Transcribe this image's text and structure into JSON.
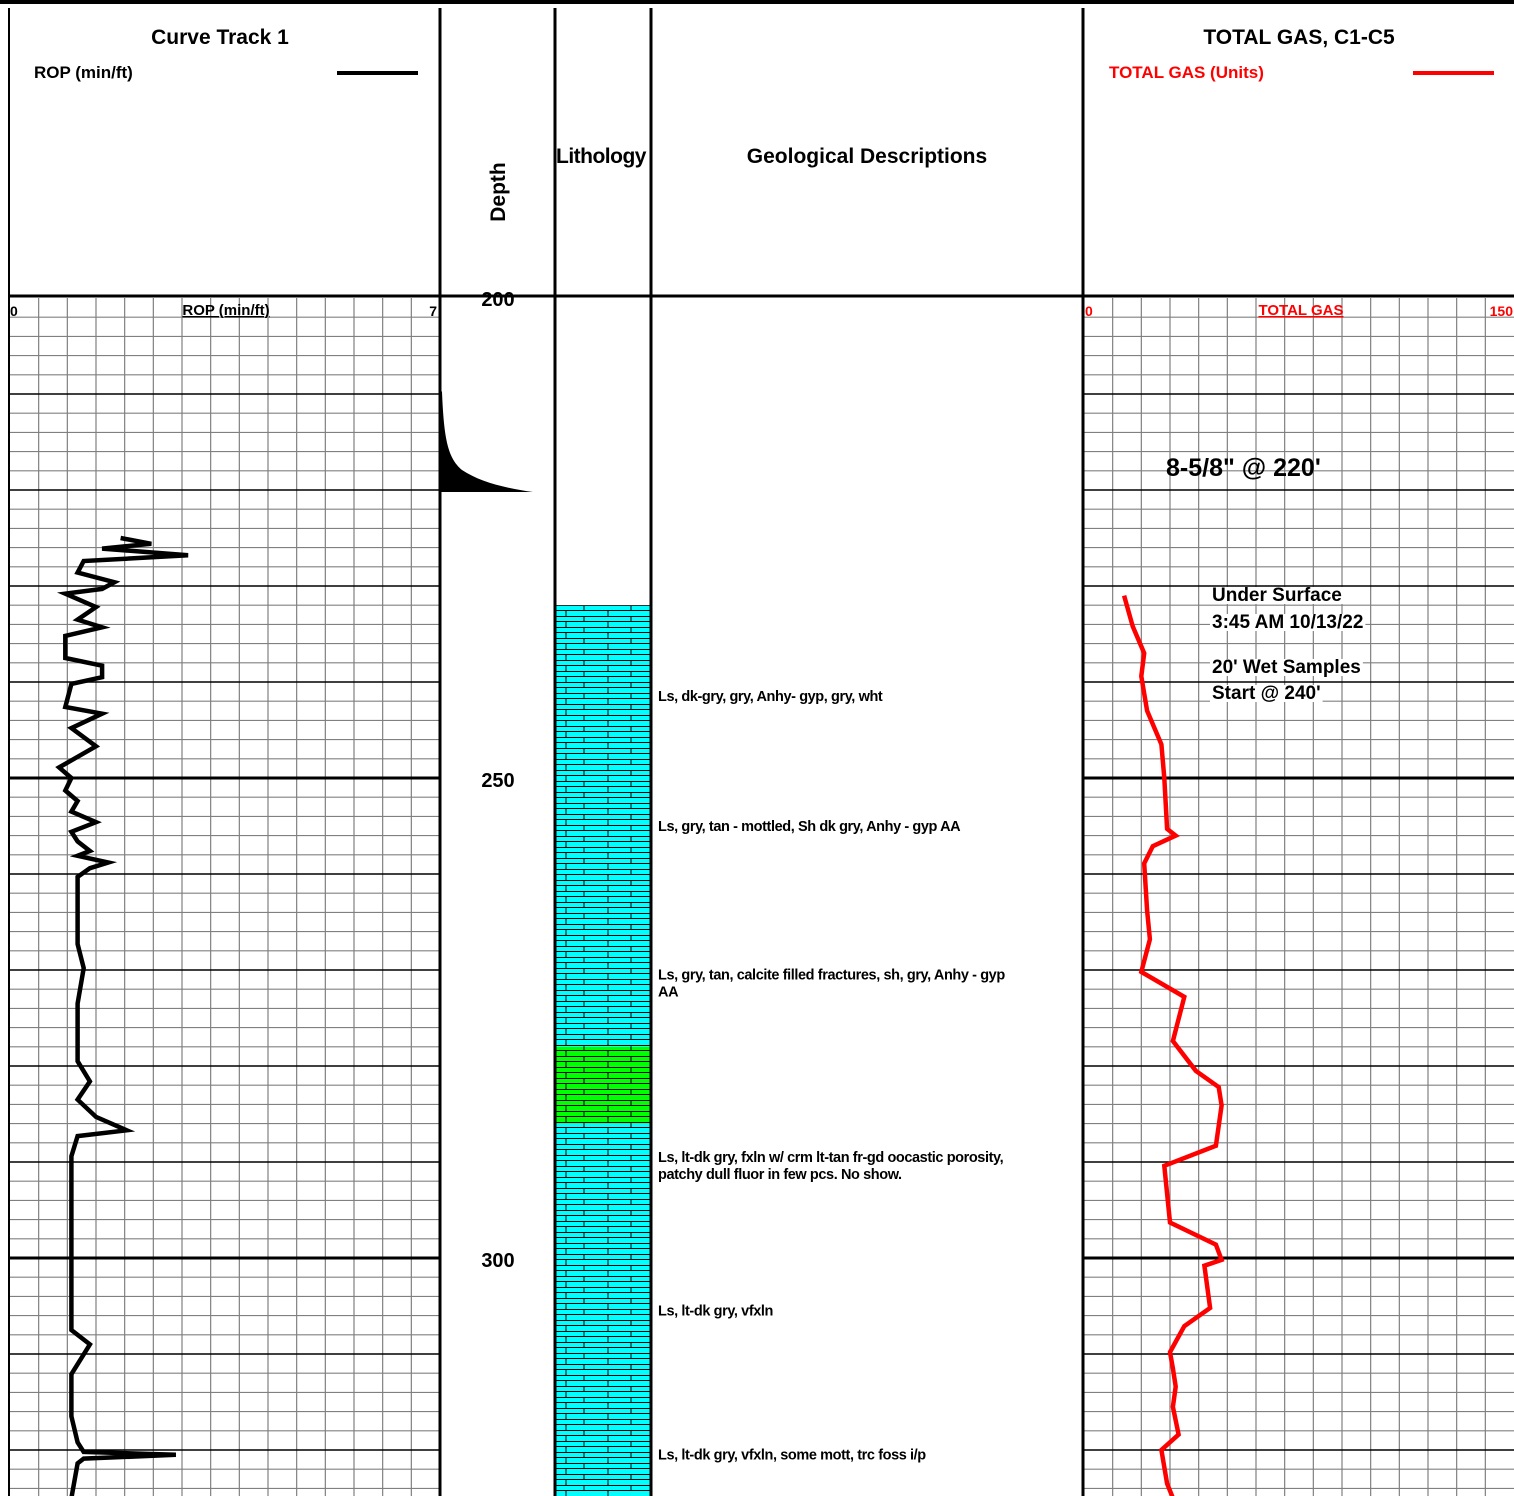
{
  "header": {
    "curve_track_title": "Curve Track 1",
    "rop_legend": "ROP (min/ft)",
    "rop_color": "#000000",
    "depth_title": "Depth",
    "lithology_title": "Lithology",
    "descriptions_title": "Geological Descriptions",
    "gas_track_title": "TOTAL GAS, C1-C5",
    "gas_legend": "TOTAL GAS (Units)",
    "gas_color": "#ff0000"
  },
  "scales": {
    "rop": {
      "label": "ROP (min/ft)",
      "min_label": "0",
      "max_label": "7",
      "min": 0,
      "max": 7
    },
    "gas": {
      "label": "TOTAL GAS",
      "min_label": "0",
      "max_label": "150",
      "min": 0,
      "max": 150
    }
  },
  "depth_labels": [
    {
      "depth": 200,
      "text": "200"
    },
    {
      "depth": 250,
      "text": "250"
    },
    {
      "depth": 300,
      "text": "300"
    }
  ],
  "annotations": {
    "casing": "8-5/8\" @ 220'",
    "under_surface_1": "Under Surface",
    "under_surface_2": "3:45 AM 10/13/22",
    "wet_samples_1": "20' Wet Samples",
    "wet_samples_2": "Start @ 240'"
  },
  "lithology": [
    {
      "top": 232,
      "base": 278,
      "rock": "limestone",
      "color": "#00ffff"
    },
    {
      "top": 278,
      "base": 286,
      "rock": "limestone",
      "color": "#00ff00"
    },
    {
      "top": 286,
      "base": 325,
      "rock": "limestone",
      "color": "#00ffff"
    }
  ],
  "descriptions": [
    {
      "depth": 242,
      "lines": [
        "Ls, dk-gry, gry, Anhy- gyp, gry, wht"
      ]
    },
    {
      "depth": 255.5,
      "lines": [
        "Ls, gry, tan - mottled, Sh dk gry, Anhy - gyp AA"
      ]
    },
    {
      "depth": 271,
      "lines": [
        "Ls, gry, tan, calcite filled fractures, sh, gry, Anhy - gyp",
        "AA"
      ]
    },
    {
      "depth": 290,
      "lines": [
        "Ls, lt-dk gry, fxln w/ crm lt-tan fr-gd oocastic porosity,",
        "patchy dull fluor in few pcs. No show."
      ]
    },
    {
      "depth": 306,
      "lines": [
        "Ls, lt-dk gry, vfxln"
      ]
    },
    {
      "depth": 321,
      "lines": [
        "Ls, lt-dk gry, vfxln, some mott, trc foss i/p"
      ]
    }
  ],
  "chart_data": [
    {
      "type": "line",
      "title": "Curve Track 1",
      "xlabel": "ROP (min/ft)",
      "ylabel": "Depth",
      "xlim": [
        0,
        7
      ],
      "ylim": [
        200,
        325
      ],
      "series": [
        {
          "name": "ROP (min/ft)",
          "points": [
            [
              1.8,
              225
            ],
            [
              2.3,
              225.6
            ],
            [
              1.5,
              226.1
            ],
            [
              2.9,
              226.8
            ],
            [
              1.2,
              227.4
            ],
            [
              1.1,
              228.6
            ],
            [
              1.7,
              229.6
            ],
            [
              1.5,
              230.3
            ],
            [
              0.9,
              230.8
            ],
            [
              1.4,
              232.2
            ],
            [
              1.1,
              233.5
            ],
            [
              1.5,
              234.3
            ],
            [
              0.9,
              235.2
            ],
            [
              0.9,
              237.5
            ],
            [
              1.5,
              238.3
            ],
            [
              1.5,
              239.5
            ],
            [
              1.0,
              240.2
            ],
            [
              0.9,
              242.6
            ],
            [
              1.5,
              243.3
            ],
            [
              1.0,
              244.8
            ],
            [
              1.4,
              246.7
            ],
            [
              0.8,
              248.9
            ],
            [
              1.0,
              250.0
            ],
            [
              0.9,
              251.3
            ],
            [
              1.1,
              252.4
            ],
            [
              1.0,
              253.5
            ],
            [
              1.4,
              254.6
            ],
            [
              1.0,
              255.6
            ],
            [
              1.1,
              256.6
            ],
            [
              1.3,
              257.6
            ],
            [
              1.1,
              258.1
            ],
            [
              1.6,
              258.8
            ],
            [
              1.3,
              259.4
            ],
            [
              1.1,
              260.3
            ],
            [
              1.1,
              264.0
            ],
            [
              1.1,
              267.3
            ],
            [
              1.2,
              269.8
            ],
            [
              1.1,
              273.5
            ],
            [
              1.1,
              276.4
            ],
            [
              1.1,
              279.5
            ],
            [
              1.3,
              281.6
            ],
            [
              1.1,
              283.5
            ],
            [
              1.4,
              285.3
            ],
            [
              1.9,
              286.7
            ],
            [
              1.1,
              287.3
            ],
            [
              1.0,
              289.4
            ],
            [
              1.0,
              300.0
            ],
            [
              1.0,
              307.5
            ],
            [
              1.3,
              309.0
            ],
            [
              1.0,
              312.1
            ],
            [
              1.0,
              316.5
            ],
            [
              1.1,
              319.2
            ],
            [
              1.2,
              320.2
            ],
            [
              2.7,
              320.5
            ],
            [
              1.2,
              320.9
            ],
            [
              1.1,
              321.4
            ],
            [
              1.0,
              325.0
            ]
          ]
        }
      ]
    },
    {
      "type": "line",
      "title": "TOTAL GAS, C1-C5",
      "xlabel": "TOTAL GAS",
      "ylabel": "Depth",
      "xlim": [
        0,
        150
      ],
      "ylim": [
        200,
        325
      ],
      "series": [
        {
          "name": "TOTAL GAS (Units)",
          "points": [
            [
              14,
              231
            ],
            [
              17,
              234.2
            ],
            [
              21,
              237
            ],
            [
              20,
              239.4
            ],
            [
              22,
              243
            ],
            [
              27,
              246.5
            ],
            [
              28,
              250
            ],
            [
              29,
              255.3
            ],
            [
              32,
              256
            ],
            [
              24,
              257.1
            ],
            [
              21,
              258.9
            ],
            [
              22,
              263.8
            ],
            [
              23,
              266.8
            ],
            [
              20,
              270.2
            ],
            [
              35,
              272.8
            ],
            [
              31,
              277.4
            ],
            [
              39,
              280.5
            ],
            [
              47,
              282.2
            ],
            [
              48,
              284.1
            ],
            [
              46,
              288.3
            ],
            [
              28,
              290.4
            ],
            [
              30,
              296.3
            ],
            [
              46,
              298.6
            ],
            [
              48,
              300.2
            ],
            [
              42,
              300.8
            ],
            [
              44,
              305.2
            ],
            [
              35,
              307.1
            ],
            [
              30,
              309.8
            ],
            [
              31,
              311.5
            ],
            [
              32,
              313.4
            ],
            [
              31,
              315.5
            ],
            [
              33,
              318.4
            ],
            [
              27,
              320
            ],
            [
              29,
              323.5
            ],
            [
              31,
              325
            ]
          ]
        }
      ]
    }
  ]
}
